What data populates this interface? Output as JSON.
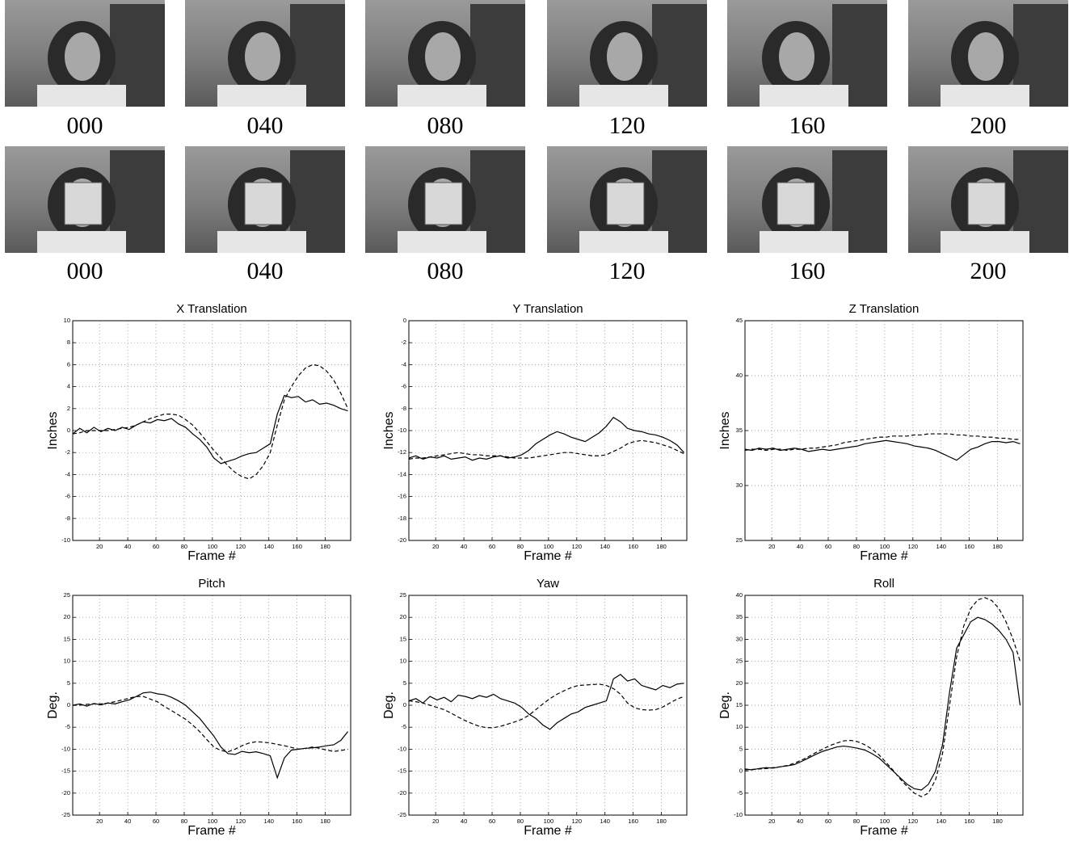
{
  "frames": {
    "rows": [
      [
        "000",
        "040",
        "080",
        "120",
        "160",
        "200"
      ],
      [
        "000",
        "040",
        "080",
        "120",
        "160",
        "200"
      ]
    ]
  },
  "chart_data": [
    {
      "type": "line",
      "title": "X Translation",
      "xlabel": "Frame #",
      "ylabel": "Inches",
      "grid": true,
      "x": [
        1,
        6,
        11,
        16,
        21,
        26,
        31,
        36,
        41,
        46,
        51,
        56,
        61,
        66,
        71,
        76,
        81,
        86,
        91,
        96,
        101,
        106,
        111,
        116,
        121,
        126,
        131,
        136,
        141,
        146,
        151,
        156,
        161,
        166,
        171,
        176,
        181,
        186,
        191,
        196
      ],
      "xlim": [
        1,
        198
      ],
      "xticks": [
        20,
        40,
        60,
        80,
        100,
        120,
        140,
        160,
        180
      ],
      "ylim": [
        -10,
        10
      ],
      "yticks": [
        -10,
        -8,
        -6,
        -4,
        -2,
        0,
        2,
        4,
        6,
        8,
        10
      ],
      "series": [
        {
          "color": "#000000",
          "style": "solid",
          "values": [
            -0.3,
            0.2,
            -0.2,
            0.3,
            -0.1,
            0.2,
            0,
            0.3,
            0.1,
            0.5,
            0.8,
            0.7,
            1,
            0.9,
            1.1,
            0.6,
            0.3,
            -0.3,
            -0.8,
            -1.5,
            -2.5,
            -3,
            -2.8,
            -2.6,
            -2.3,
            -2.1,
            -2,
            -1.6,
            -1.2,
            1.5,
            3.2,
            3,
            3.1,
            2.6,
            2.8,
            2.4,
            2.5,
            2.3,
            2,
            1.8
          ]
        },
        {
          "color": "#000000",
          "style": "dashed",
          "values": [
            -0.3,
            -0.2,
            0,
            0,
            0,
            0,
            0.1,
            0.2,
            0.3,
            0.5,
            0.8,
            1.1,
            1.3,
            1.5,
            1.5,
            1.4,
            1,
            0.5,
            -0.2,
            -1,
            -1.8,
            -2.5,
            -3.2,
            -3.8,
            -4.2,
            -4.4,
            -4,
            -3.2,
            -2,
            0.5,
            2.8,
            4,
            5,
            5.7,
            6,
            5.9,
            5.4,
            4.6,
            3.4,
            2
          ]
        }
      ]
    },
    {
      "type": "line",
      "title": "Y Translation",
      "xlabel": "Frame #",
      "ylabel": "Inches",
      "grid": true,
      "x": [
        1,
        6,
        11,
        16,
        21,
        26,
        31,
        36,
        41,
        46,
        51,
        56,
        61,
        66,
        71,
        76,
        81,
        86,
        91,
        96,
        101,
        106,
        111,
        116,
        121,
        126,
        131,
        136,
        141,
        146,
        151,
        156,
        161,
        166,
        171,
        176,
        181,
        186,
        191,
        196
      ],
      "xlim": [
        1,
        198
      ],
      "xticks": [
        20,
        40,
        60,
        80,
        100,
        120,
        140,
        160,
        180
      ],
      "ylim": [
        -20,
        0
      ],
      "yticks": [
        -20,
        -18,
        -16,
        -14,
        -12,
        -10,
        -8,
        -6,
        -4,
        -2,
        0
      ],
      "series": [
        {
          "color": "#000000",
          "style": "solid",
          "values": [
            -12.5,
            -12.3,
            -12.6,
            -12.4,
            -12.5,
            -12.3,
            -12.6,
            -12.5,
            -12.4,
            -12.7,
            -12.5,
            -12.6,
            -12.4,
            -12.3,
            -12.5,
            -12.4,
            -12.2,
            -11.8,
            -11.2,
            -10.8,
            -10.4,
            -10.1,
            -10.3,
            -10.6,
            -10.8,
            -11,
            -10.6,
            -10.2,
            -9.6,
            -8.8,
            -9.2,
            -9.8,
            -10,
            -10.1,
            -10.3,
            -10.4,
            -10.6,
            -10.9,
            -11.3,
            -12
          ]
        },
        {
          "color": "#000000",
          "style": "dashed",
          "values": [
            -12.6,
            -12.5,
            -12.5,
            -12.4,
            -12.3,
            -12.2,
            -12.1,
            -12,
            -12.1,
            -12.2,
            -12.2,
            -12.3,
            -12.3,
            -12.3,
            -12.4,
            -12.5,
            -12.5,
            -12.5,
            -12.4,
            -12.3,
            -12.2,
            -12.1,
            -12,
            -12,
            -12.1,
            -12.2,
            -12.3,
            -12.3,
            -12.2,
            -11.9,
            -11.6,
            -11.2,
            -11,
            -10.9,
            -11,
            -11.1,
            -11.3,
            -11.5,
            -11.8,
            -12.1
          ]
        }
      ]
    },
    {
      "type": "line",
      "title": "Z Translation",
      "xlabel": "Frame #",
      "ylabel": "Inches",
      "grid": true,
      "x": [
        1,
        6,
        11,
        16,
        21,
        26,
        31,
        36,
        41,
        46,
        51,
        56,
        61,
        66,
        71,
        76,
        81,
        86,
        91,
        96,
        101,
        106,
        111,
        116,
        121,
        126,
        131,
        136,
        141,
        146,
        151,
        156,
        161,
        166,
        171,
        176,
        181,
        186,
        191,
        196
      ],
      "xlim": [
        1,
        198
      ],
      "xticks": [
        20,
        40,
        60,
        80,
        100,
        120,
        140,
        160,
        180
      ],
      "ylim": [
        25,
        45
      ],
      "yticks": [
        25,
        30,
        35,
        40,
        45
      ],
      "series": [
        {
          "color": "#000000",
          "style": "solid",
          "values": [
            33.3,
            33.2,
            33.4,
            33.3,
            33.4,
            33.2,
            33.3,
            33.4,
            33.3,
            33.1,
            33.2,
            33.3,
            33.2,
            33.3,
            33.4,
            33.5,
            33.6,
            33.8,
            33.9,
            34,
            34.1,
            34,
            33.9,
            33.8,
            33.6,
            33.5,
            33.4,
            33.2,
            32.9,
            32.6,
            32.3,
            32.8,
            33.3,
            33.5,
            33.8,
            34,
            34,
            33.9,
            34,
            33.8
          ]
        },
        {
          "color": "#000000",
          "style": "dashed",
          "values": [
            33.2,
            33.3,
            33.3,
            33.2,
            33.3,
            33.3,
            33.2,
            33.3,
            33.3,
            33.4,
            33.4,
            33.5,
            33.6,
            33.7,
            33.9,
            34,
            34.1,
            34.2,
            34.3,
            34.4,
            34.4,
            34.5,
            34.5,
            34.5,
            34.6,
            34.6,
            34.7,
            34.7,
            34.7,
            34.7,
            34.6,
            34.6,
            34.5,
            34.5,
            34.4,
            34.4,
            34.3,
            34.3,
            34.2,
            34.2
          ]
        }
      ]
    },
    {
      "type": "line",
      "title": "Pitch",
      "xlabel": "Frame #",
      "ylabel": "Deg.",
      "grid": true,
      "x": [
        1,
        6,
        11,
        16,
        21,
        26,
        31,
        36,
        41,
        46,
        51,
        56,
        61,
        66,
        71,
        76,
        81,
        86,
        91,
        96,
        101,
        106,
        111,
        116,
        121,
        126,
        131,
        136,
        141,
        146,
        151,
        156,
        161,
        166,
        171,
        176,
        181,
        186,
        191,
        196
      ],
      "xlim": [
        1,
        198
      ],
      "xticks": [
        20,
        40,
        60,
        80,
        100,
        120,
        140,
        160,
        180
      ],
      "ylim": [
        -25,
        25
      ],
      "yticks": [
        -25,
        -20,
        -15,
        -10,
        -5,
        0,
        5,
        10,
        15,
        20,
        25
      ],
      "series": [
        {
          "color": "#000000",
          "style": "solid",
          "values": [
            0,
            0.3,
            -0.2,
            0.4,
            0.1,
            0.5,
            0.3,
            0.8,
            1.2,
            2,
            2.8,
            3,
            2.6,
            2.4,
            1.8,
            1,
            0,
            -1.5,
            -3,
            -5,
            -7,
            -9.5,
            -11,
            -11.2,
            -10.5,
            -10.8,
            -10.6,
            -11,
            -11.5,
            -16.5,
            -12,
            -10.2,
            -10,
            -9.8,
            -9.7,
            -9.5,
            -9.2,
            -9,
            -8,
            -6
          ]
        },
        {
          "color": "#000000",
          "style": "dashed",
          "values": [
            0,
            0,
            0.2,
            0.3,
            0.3,
            0.5,
            0.8,
            1.2,
            1.6,
            2,
            2,
            1.4,
            0.8,
            -0.3,
            -1.2,
            -2.2,
            -3.2,
            -4.5,
            -6,
            -7.8,
            -9.5,
            -10.3,
            -10.6,
            -10,
            -9.2,
            -8.6,
            -8.3,
            -8.4,
            -8.6,
            -8.9,
            -9.2,
            -9.6,
            -10,
            -9.8,
            -9.5,
            -9.8,
            -10.2,
            -10.5,
            -10.3,
            -10
          ]
        }
      ]
    },
    {
      "type": "line",
      "title": "Yaw",
      "xlabel": "Frame #",
      "ylabel": "Deg.",
      "grid": true,
      "x": [
        1,
        6,
        11,
        16,
        21,
        26,
        31,
        36,
        41,
        46,
        51,
        56,
        61,
        66,
        71,
        76,
        81,
        86,
        91,
        96,
        101,
        106,
        111,
        116,
        121,
        126,
        131,
        136,
        141,
        146,
        151,
        156,
        161,
        166,
        171,
        176,
        181,
        186,
        191,
        196
      ],
      "xlim": [
        1,
        198
      ],
      "xticks": [
        20,
        40,
        60,
        80,
        100,
        120,
        140,
        160,
        180
      ],
      "ylim": [
        -25,
        25
      ],
      "yticks": [
        -25,
        -20,
        -15,
        -10,
        -5,
        0,
        5,
        10,
        15,
        20,
        25
      ],
      "series": [
        {
          "color": "#000000",
          "style": "solid",
          "values": [
            1,
            1.5,
            0.5,
            2,
            1.2,
            1.8,
            0.8,
            2.3,
            2,
            1.5,
            2.2,
            1.8,
            2.5,
            1.5,
            1,
            0.5,
            -0.5,
            -2,
            -3,
            -4.5,
            -5.5,
            -4,
            -3,
            -2,
            -1.5,
            -0.5,
            0,
            0.5,
            1,
            6,
            7,
            5.5,
            6,
            4.5,
            4,
            3.5,
            4.5,
            4,
            4.8,
            5
          ]
        },
        {
          "color": "#000000",
          "style": "dashed",
          "values": [
            1,
            0.8,
            0.5,
            0,
            -0.5,
            -1,
            -1.8,
            -2.7,
            -3.5,
            -4.2,
            -4.8,
            -5.1,
            -5.1,
            -4.8,
            -4.3,
            -3.8,
            -3.2,
            -2.3,
            -1,
            0.3,
            1.5,
            2.5,
            3.3,
            4,
            4.5,
            4.6,
            4.7,
            4.8,
            4.5,
            3.8,
            2.5,
            0.5,
            -0.6,
            -1,
            -1.1,
            -1,
            -0.4,
            0.5,
            1.4,
            2
          ]
        }
      ]
    },
    {
      "type": "line",
      "title": "Roll",
      "xlabel": "Frame #",
      "ylabel": "Deg.",
      "grid": true,
      "x": [
        1,
        6,
        11,
        16,
        21,
        26,
        31,
        36,
        41,
        46,
        51,
        56,
        61,
        66,
        71,
        76,
        81,
        86,
        91,
        96,
        101,
        106,
        111,
        116,
        121,
        126,
        131,
        136,
        141,
        146,
        151,
        156,
        161,
        166,
        171,
        176,
        181,
        186,
        191,
        196
      ],
      "xlim": [
        1,
        198
      ],
      "xticks": [
        20,
        40,
        60,
        80,
        100,
        120,
        140,
        160,
        180
      ],
      "ylim": [
        -10,
        40
      ],
      "yticks": [
        -10,
        -5,
        0,
        5,
        10,
        15,
        20,
        25,
        30,
        35,
        40
      ],
      "series": [
        {
          "color": "#000000",
          "style": "solid",
          "values": [
            0.5,
            0.3,
            0.6,
            0.8,
            0.7,
            1,
            1.2,
            1.5,
            2.2,
            3,
            3.8,
            4.5,
            5,
            5.5,
            5.7,
            5.5,
            5.2,
            4.8,
            4,
            3,
            1.5,
            0,
            -1.5,
            -3,
            -4,
            -4.3,
            -3,
            0,
            6,
            18,
            28,
            31,
            34,
            35,
            34.5,
            33.5,
            32,
            30,
            27,
            15
          ]
        },
        {
          "color": "#000000",
          "style": "dashed",
          "values": [
            0.3,
            0.4,
            0.5,
            0.6,
            0.8,
            1,
            1.3,
            1.8,
            2.5,
            3.3,
            4.2,
            5,
            5.8,
            6.4,
            6.9,
            7,
            6.7,
            6,
            5,
            3.7,
            2,
            0.2,
            -1.8,
            -3.5,
            -5,
            -5.8,
            -5,
            -2,
            4,
            15,
            26,
            33,
            37,
            39,
            39.5,
            38.8,
            37,
            34,
            30,
            25
          ]
        }
      ]
    }
  ]
}
